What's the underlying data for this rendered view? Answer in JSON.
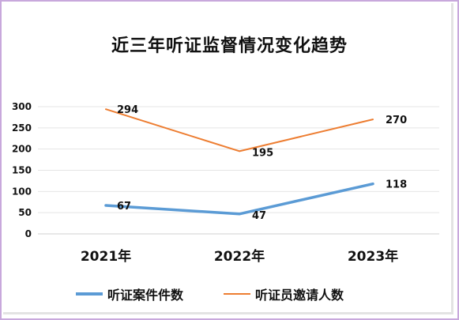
{
  "chart_data": {
    "type": "line",
    "title": "近三年听证监督情况变化趋势",
    "categories": [
      "2021年",
      "2022年",
      "2023年"
    ],
    "series": [
      {
        "name": "听证案件件数",
        "values": [
          67,
          47,
          118
        ],
        "color": "#5b9bd5"
      },
      {
        "name": "听证员邀请人数",
        "values": [
          294,
          195,
          270
        ],
        "color": "#ed7d31"
      }
    ],
    "ylim": [
      0,
      300
    ],
    "yticks": [
      0,
      50,
      100,
      150,
      200,
      250,
      300
    ],
    "grid": true,
    "legend_position": "bottom"
  }
}
